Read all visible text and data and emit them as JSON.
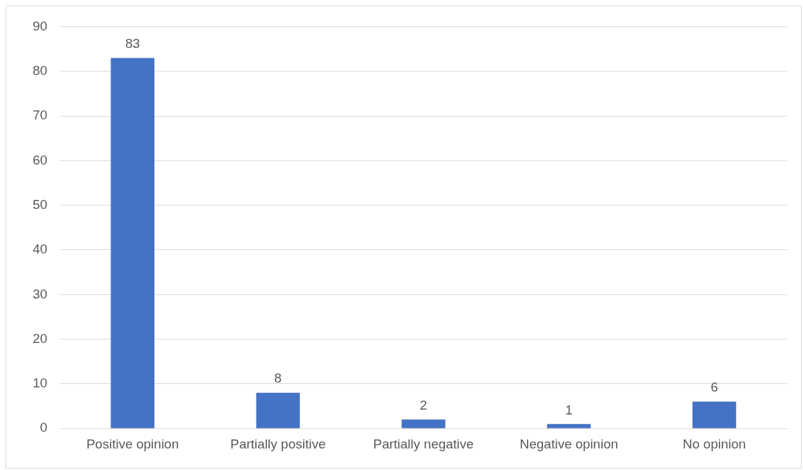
{
  "chart_data": {
    "type": "bar",
    "categories": [
      "Positive opinion",
      "Partially positive",
      "Partially negative",
      "Negative opinion",
      "No opinion"
    ],
    "values": [
      83,
      8,
      2,
      1,
      6
    ],
    "color": "#4472c4",
    "ylim": [
      0,
      90
    ],
    "yticks": [
      0,
      10,
      20,
      30,
      40,
      50,
      60,
      70,
      80,
      90
    ],
    "grid": "y",
    "data_labels": true,
    "legend": false
  }
}
